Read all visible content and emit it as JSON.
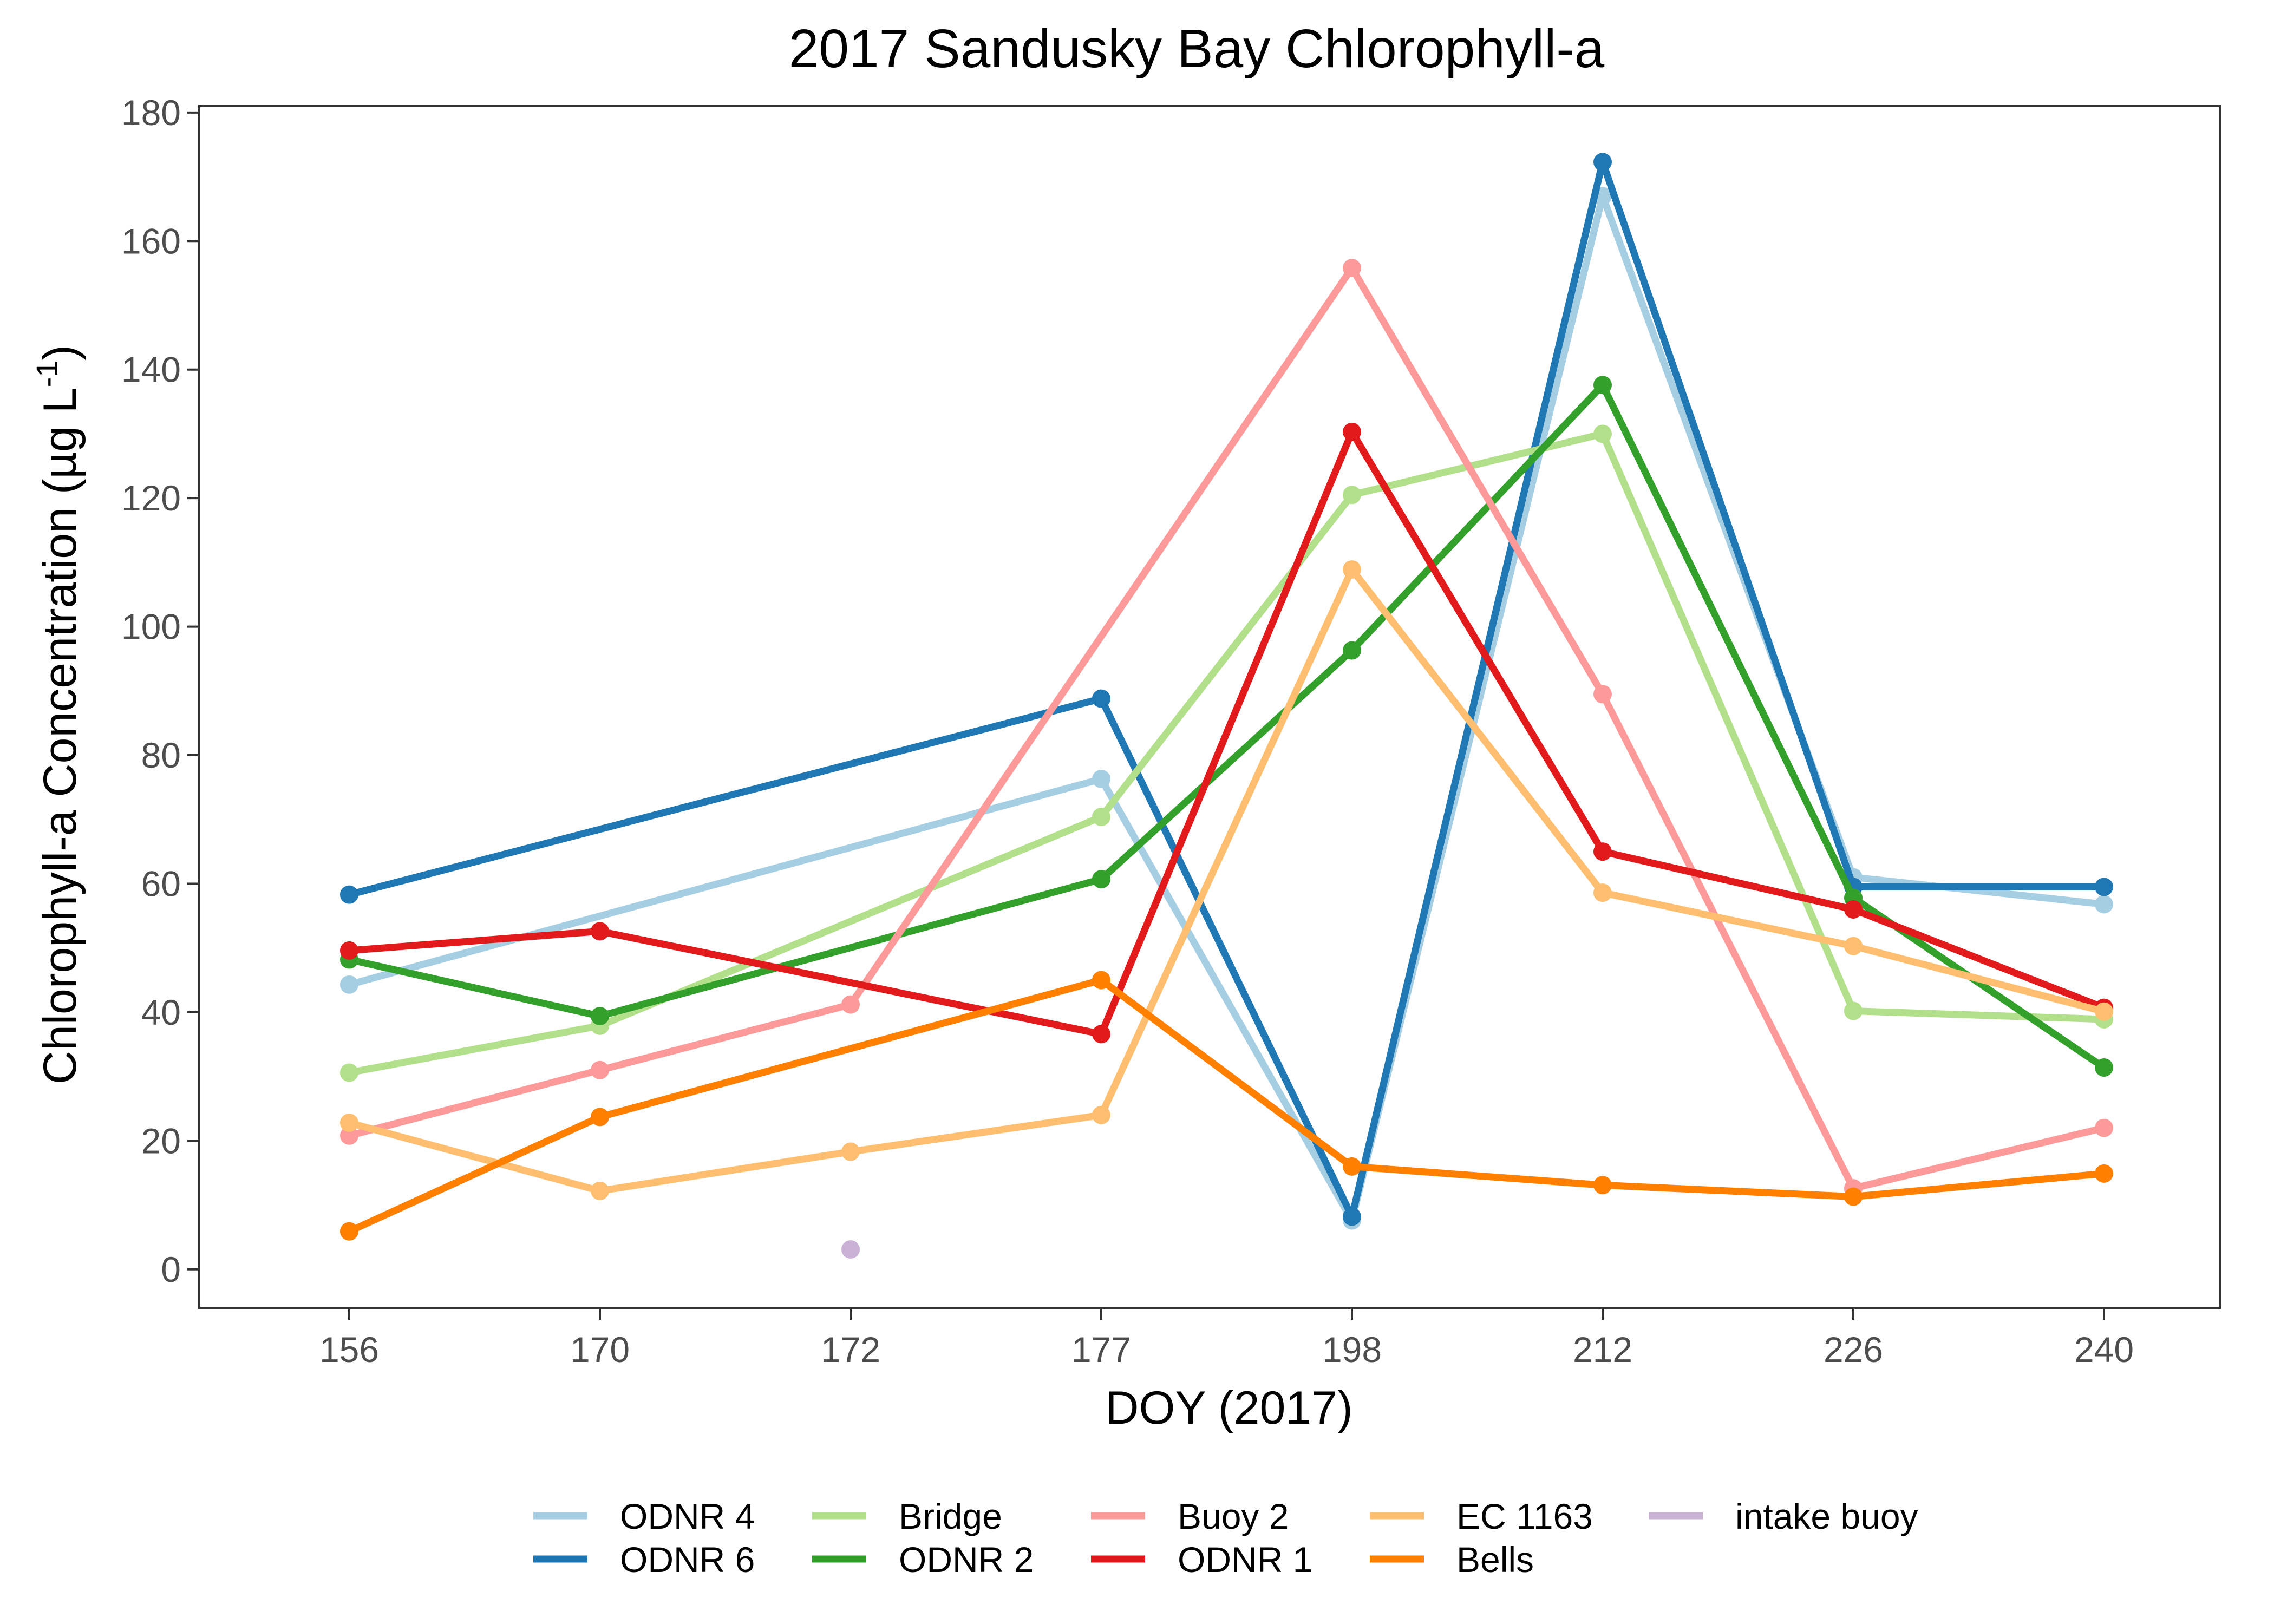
{
  "chart_data": {
    "type": "line",
    "title": "2017 Sandusky Bay Chlorophyll-a",
    "xlabel": "DOY (2017)",
    "ylabel": "Chlorophyll-a Concentration (µg L",
    "ylabel_superscript": "-1",
    "ylabel_close": ")",
    "categories": [
      "156",
      "170",
      "172",
      "177",
      "198",
      "212",
      "226",
      "240"
    ],
    "ylim": [
      -6,
      181
    ],
    "yticks": [
      0,
      20,
      40,
      60,
      80,
      100,
      120,
      140,
      160,
      180
    ],
    "grid": false,
    "legend_position": "bottom",
    "series": [
      {
        "name": "ODNR 4",
        "color": "#a6cee3",
        "values": [
          44.3,
          null,
          null,
          76.3,
          7.6,
          167,
          61,
          56.8
        ]
      },
      {
        "name": "ODNR 6",
        "color": "#1f78b4",
        "values": [
          58.3,
          null,
          null,
          88.8,
          8.2,
          172.3,
          59.5,
          59.5
        ]
      },
      {
        "name": "Bridge",
        "color": "#b2df8a",
        "values": [
          30.6,
          37.9,
          null,
          70.4,
          120.5,
          130,
          40.2,
          38.9
        ]
      },
      {
        "name": "ODNR 2",
        "color": "#33a02c",
        "values": [
          48.2,
          39.4,
          null,
          60.7,
          96.3,
          137.6,
          57.8,
          31.4
        ]
      },
      {
        "name": "Buoy 2",
        "color": "#fb9a99",
        "values": [
          20.8,
          31,
          41.2,
          null,
          155.8,
          89.5,
          12.6,
          22
        ]
      },
      {
        "name": "ODNR 1",
        "color": "#e31a1c",
        "values": [
          49.6,
          52.6,
          null,
          36.6,
          130.3,
          65,
          56,
          40.7
        ]
      },
      {
        "name": "EC 1163",
        "color": "#fdbf6f",
        "values": [
          22.8,
          12.2,
          18.3,
          24,
          108.9,
          58.6,
          50.3,
          40.1
        ]
      },
      {
        "name": "Bells",
        "color": "#ff7f00",
        "values": [
          5.9,
          23.7,
          null,
          45,
          16,
          13.1,
          11.3,
          14.9
        ]
      },
      {
        "name": "intake buoy",
        "color": "#cab2d6",
        "values": [
          null,
          null,
          3.1,
          null,
          null,
          null,
          null,
          null
        ]
      }
    ]
  }
}
